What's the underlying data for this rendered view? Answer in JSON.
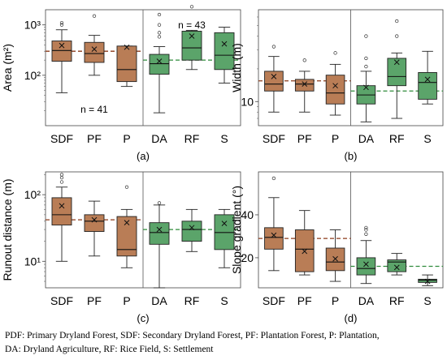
{
  "caption": {
    "line1": "PDF: Primary Dryland Forest, SDF: Secondary Dryland Forest, PF: Plantation Forest, P: Plantation,",
    "line2": "DA: Dryland Agriculture, RF: Rice Field, S: Settlement"
  },
  "colors": {
    "forest": "#b97d56",
    "agri": "#5ba46a",
    "dash_forest": "#8b3a1a",
    "dash_agri": "#2e8b3a"
  },
  "chart_data": [
    {
      "panel": "(a)",
      "type": "box",
      "ylabel": "Area (m²)",
      "yscale": "log",
      "ylim": [
        10,
        2000
      ],
      "yticks": [
        {
          "v": 100,
          "label": "10²"
        },
        {
          "v": 1000,
          "label": "10³"
        }
      ],
      "categories": [
        "SDF",
        "PF",
        "P",
        "DA",
        "RF",
        "S"
      ],
      "annotations": [
        "n = 41",
        "n = 43"
      ],
      "group_means": [
        300,
        200
      ],
      "boxes": [
        {
          "cat": "SDF",
          "min": 45,
          "q1": 190,
          "median": 310,
          "q3": 480,
          "max": 800,
          "mean": 390,
          "outliers": [
            1000,
            1100
          ]
        },
        {
          "cat": "PF",
          "min": 100,
          "q1": 180,
          "median": 270,
          "q3": 450,
          "max": 620,
          "mean": 330,
          "outliers": [
            1500
          ]
        },
        {
          "cat": "P",
          "min": 60,
          "q1": 75,
          "median": 130,
          "q3": 380,
          "max": 380,
          "mean": 360,
          "outliers": []
        },
        {
          "cat": "DA",
          "min": 18,
          "q1": 105,
          "median": 170,
          "q3": 260,
          "max": 370,
          "mean": 190,
          "outliers": [
            580,
            700,
            1000,
            1600
          ]
        },
        {
          "cat": "RF",
          "min": 130,
          "q1": 200,
          "median": 350,
          "q3": 750,
          "max": 780,
          "mean": 600,
          "outliers": [
            2300
          ]
        },
        {
          "cat": "S",
          "min": 70,
          "q1": 130,
          "median": 250,
          "q3": 700,
          "max": 900,
          "mean": 420,
          "outliers": []
        }
      ]
    },
    {
      "panel": "(b)",
      "type": "box",
      "ylabel": "Width (m)",
      "yscale": "log",
      "ylim": [
        6,
        70
      ],
      "yticks": [
        {
          "v": 10,
          "label": "10"
        }
      ],
      "categories": [
        "SDF",
        "PF",
        "P",
        "DA",
        "RF",
        "S"
      ],
      "group_means": [
        15.5,
        12.5
      ],
      "boxes": [
        {
          "cat": "SDF",
          "min": 8,
          "q1": 12.5,
          "median": 14.5,
          "q3": 19,
          "max": 26,
          "mean": 17,
          "outliers": [
            32
          ]
        },
        {
          "cat": "PF",
          "min": 8,
          "q1": 12.5,
          "median": 14.5,
          "q3": 16,
          "max": 19,
          "mean": 14.5,
          "outliers": [
            24
          ]
        },
        {
          "cat": "P",
          "min": 7.5,
          "q1": 9.5,
          "median": 12,
          "q3": 17.5,
          "max": 22,
          "mean": 14,
          "outliers": [
            28
          ]
        },
        {
          "cat": "DA",
          "min": 6.5,
          "q1": 9.5,
          "median": 11.5,
          "q3": 14,
          "max": 19,
          "mean": 13.5,
          "outliers": [
            21,
            25,
            40
          ]
        },
        {
          "cat": "RF",
          "min": 7,
          "q1": 14,
          "median": 17,
          "q3": 25,
          "max": 28,
          "mean": 23,
          "outliers": [
            40,
            55
          ]
        },
        {
          "cat": "S",
          "min": 9.5,
          "q1": 10.5,
          "median": 15,
          "q3": 18.5,
          "max": 29,
          "mean": 16,
          "outliers": []
        }
      ]
    },
    {
      "panel": "(c)",
      "type": "box",
      "ylabel": "Runout distance (m)",
      "yscale": "log",
      "ylim": [
        4,
        220
      ],
      "yticks": [
        {
          "v": 10,
          "label": "10¹"
        },
        {
          "v": 100,
          "label": "10²"
        }
      ],
      "categories": [
        "SDF",
        "PF",
        "P",
        "DA",
        "RF",
        "S"
      ],
      "group_means": [
        42,
        30
      ],
      "boxes": [
        {
          "cat": "SDF",
          "min": 10,
          "q1": 35,
          "median": 50,
          "q3": 90,
          "max": 130,
          "mean": 68,
          "outliers": [
            155,
            180,
            200
          ]
        },
        {
          "cat": "PF",
          "min": 12,
          "q1": 28,
          "median": 40,
          "q3": 50,
          "max": 80,
          "mean": 42,
          "outliers": []
        },
        {
          "cat": "P",
          "min": 8,
          "q1": 12,
          "median": 15,
          "q3": 47,
          "max": 60,
          "mean": 38,
          "outliers": [
            130
          ]
        },
        {
          "cat": "DA",
          "min": 4,
          "q1": 18,
          "median": 27,
          "q3": 38,
          "max": 70,
          "mean": 30,
          "outliers": [
            75
          ]
        },
        {
          "cat": "RF",
          "min": 14,
          "q1": 20,
          "median": 30,
          "q3": 40,
          "max": 60,
          "mean": 32,
          "outliers": []
        },
        {
          "cat": "S",
          "min": 8,
          "q1": 15,
          "median": 27,
          "q3": 50,
          "max": 60,
          "mean": 37,
          "outliers": []
        }
      ]
    },
    {
      "panel": "(d)",
      "type": "box",
      "ylabel": "Slope gradient (°)",
      "yscale": "linear",
      "ylim": [
        6,
        60
      ],
      "yticks": [
        {
          "v": 20,
          "label": "20"
        },
        {
          "v": 40,
          "label": "40"
        }
      ],
      "categories": [
        "SDF",
        "PF",
        "P",
        "DA",
        "RF",
        "S"
      ],
      "group_means": [
        29,
        16
      ],
      "boxes": [
        {
          "cat": "SDF",
          "min": 14,
          "q1": 24,
          "median": 29.5,
          "q3": 34,
          "max": 48,
          "mean": 30.5,
          "outliers": [
            57
          ]
        },
        {
          "cat": "PF",
          "min": 12,
          "q1": 13.5,
          "median": 24,
          "q3": 33,
          "max": 42,
          "mean": 23,
          "outliers": []
        },
        {
          "cat": "P",
          "min": 9,
          "q1": 14,
          "median": 18,
          "q3": 24.5,
          "max": 33,
          "mean": 19.5,
          "outliers": []
        },
        {
          "cat": "DA",
          "min": 8,
          "q1": 12,
          "median": 15,
          "q3": 20,
          "max": 28,
          "mean": 17,
          "outliers": [
            31,
            33,
            34
          ]
        },
        {
          "cat": "RF",
          "min": 12,
          "q1": 13.5,
          "median": 18,
          "q3": 19,
          "max": 22,
          "mean": 15.5,
          "outliers": []
        },
        {
          "cat": "S",
          "min": 7,
          "q1": 8.5,
          "median": 9.5,
          "q3": 10,
          "max": 12,
          "mean": 9,
          "outliers": []
        }
      ]
    }
  ]
}
